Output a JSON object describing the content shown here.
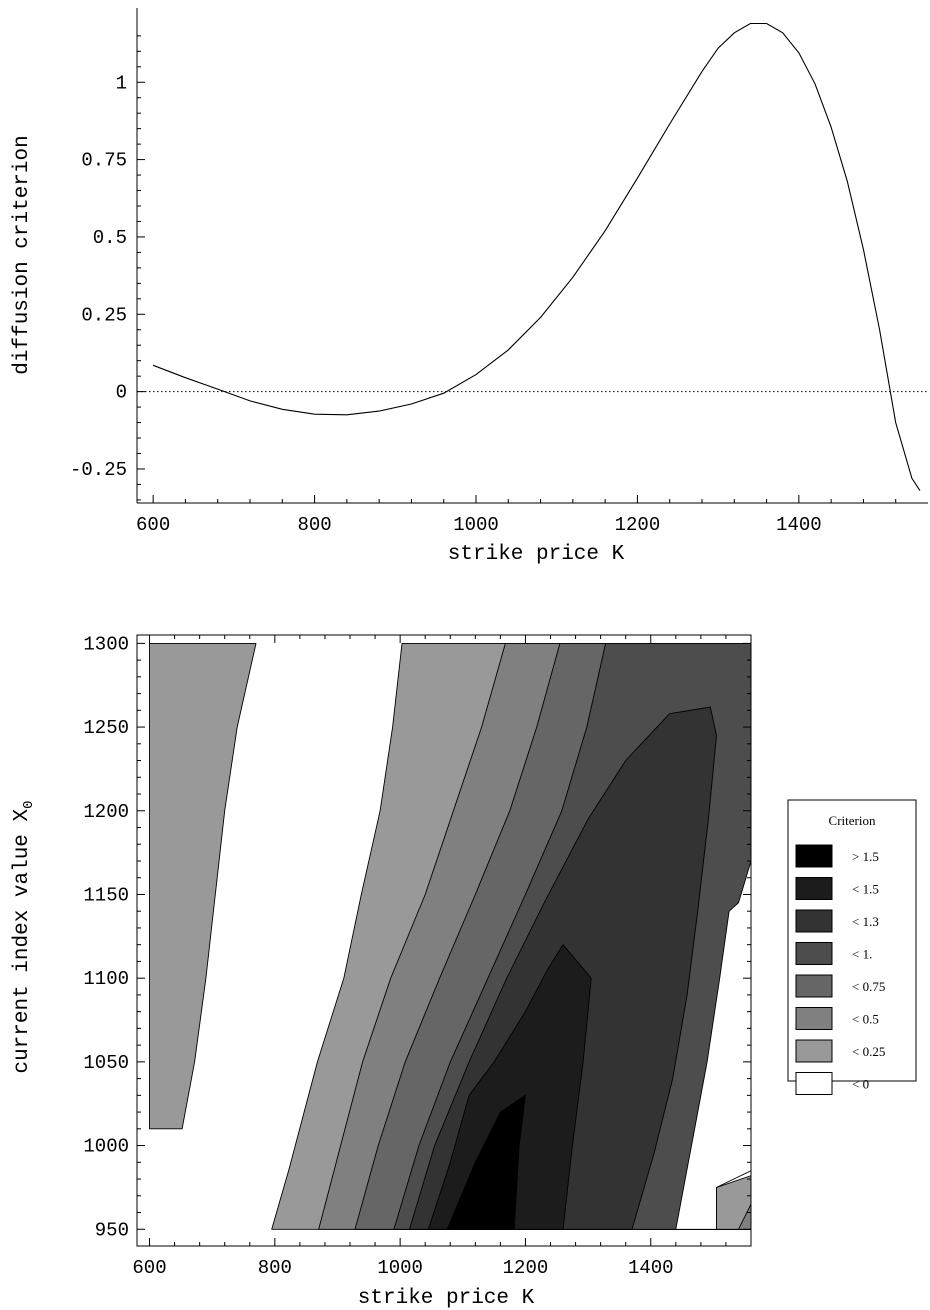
{
  "chart_data": [
    {
      "type": "line",
      "title": "",
      "xlabel": "strike price K",
      "ylabel": "diffusion criterion",
      "xlim": [
        580,
        1560
      ],
      "ylim": [
        -0.36,
        1.24
      ],
      "xticks": [
        "600",
        "800",
        "1000",
        "1200",
        "1400"
      ],
      "yticks": [
        "-0.25",
        "0",
        "0.25",
        "0.5",
        "0.75",
        "1"
      ],
      "reference_line": {
        "y": 0,
        "style": "dotted"
      },
      "grid": false,
      "series": [
        {
          "x": [
            600,
            640,
            680,
            720,
            760,
            800,
            840,
            880,
            920,
            960,
            1000,
            1040,
            1080,
            1120,
            1160,
            1200,
            1240,
            1280,
            1300,
            1320,
            1340,
            1360,
            1380,
            1400,
            1420,
            1440,
            1460,
            1480,
            1500,
            1520,
            1540,
            1550
          ],
          "y": [
            0.085,
            0.045,
            0.008,
            -0.03,
            -0.057,
            -0.073,
            -0.075,
            -0.063,
            -0.04,
            -0.005,
            0.055,
            0.135,
            0.24,
            0.37,
            0.52,
            0.69,
            0.865,
            1.035,
            1.11,
            1.16,
            1.19,
            1.19,
            1.16,
            1.095,
            0.995,
            0.855,
            0.68,
            0.46,
            0.2,
            -0.1,
            -0.28,
            -0.32
          ]
        }
      ]
    },
    {
      "type": "heatmap",
      "title": "",
      "xlabel": "strike price K",
      "ylabel_prefix": "current index value X",
      "ylabel_subscript": "0",
      "xlim": [
        580,
        1560
      ],
      "ylim": [
        940,
        1305
      ],
      "xticks": [
        "600",
        "800",
        "1000",
        "1200",
        "1400"
      ],
      "yticks": [
        "950",
        "1000",
        "1050",
        "1100",
        "1150",
        "1200",
        "1250",
        "1300"
      ],
      "grid": false,
      "legend": {
        "title": "Criterion",
        "position": "right",
        "entries": [
          {
            "label": "> 1.5",
            "color": "#000000"
          },
          {
            "label": "< 1.5",
            "color": "#1c1c1c"
          },
          {
            "label": "< 1.3",
            "color": "#333333"
          },
          {
            "label": "< 1.",
            "color": "#4d4d4d"
          },
          {
            "label": "< 0.75",
            "color": "#666666"
          },
          {
            "label": "< 0.5",
            "color": "#808080"
          },
          {
            "label": "< 0.25",
            "color": "#999999"
          },
          {
            "label": "< 0",
            "color": "#ffffff"
          }
        ]
      },
      "regions": [
        {
          "level": "< 0.25",
          "color": "#999999",
          "points": [
            [
              600,
              1300
            ],
            [
              770,
              1300
            ],
            [
              740,
              1250
            ],
            [
              720,
              1200
            ],
            [
              705,
              1150
            ],
            [
              690,
              1100
            ],
            [
              672,
              1050
            ],
            [
              652,
              1010
            ],
            [
              600,
              1010
            ]
          ]
        },
        {
          "level": "< 0.25",
          "color": "#999999",
          "points": [
            [
              1560,
              1300
            ],
            [
              1560,
              950
            ],
            [
              795,
              950
            ],
            [
              822,
              985
            ],
            [
              868,
              1050
            ],
            [
              910,
              1100
            ],
            [
              938,
              1150
            ],
            [
              968,
              1200
            ],
            [
              988,
              1250
            ],
            [
              1003,
              1300
            ]
          ]
        },
        {
          "level": "< 0.5",
          "color": "#808080",
          "points": [
            [
              1560,
              1300
            ],
            [
              1560,
              950
            ],
            [
              870,
              950
            ],
            [
              905,
              1000
            ],
            [
              940,
              1050
            ],
            [
              985,
              1100
            ],
            [
              1040,
              1150
            ],
            [
              1085,
              1200
            ],
            [
              1130,
              1250
            ],
            [
              1168,
              1300
            ]
          ]
        },
        {
          "level": "< 0.75",
          "color": "#666666",
          "points": [
            [
              1560,
              1300
            ],
            [
              1560,
              950
            ],
            [
              928,
              950
            ],
            [
              965,
              1000
            ],
            [
              1008,
              1050
            ],
            [
              1063,
              1100
            ],
            [
              1120,
              1150
            ],
            [
              1175,
              1200
            ],
            [
              1218,
              1250
            ],
            [
              1255,
              1300
            ]
          ]
        },
        {
          "level": "< 1.",
          "color": "#4d4d4d",
          "points": [
            [
              1560,
              1300
            ],
            [
              1560,
              950
            ],
            [
              990,
              950
            ],
            [
              1030,
              1000
            ],
            [
              1080,
              1050
            ],
            [
              1140,
              1100
            ],
            [
              1200,
              1150
            ],
            [
              1258,
              1200
            ],
            [
              1298,
              1250
            ],
            [
              1328,
              1300
            ]
          ]
        },
        {
          "level": "< 1.3",
          "color": "#333333",
          "points": [
            [
              1495,
              1262
            ],
            [
              1505,
              1245
            ],
            [
              1492,
              1195
            ],
            [
              1475,
              1140
            ],
            [
              1458,
              1090
            ],
            [
              1435,
              1040
            ],
            [
              1405,
              995
            ],
            [
              1370,
              950
            ],
            [
              1015,
              950
            ],
            [
              1055,
              1000
            ],
            [
              1110,
              1050
            ],
            [
              1170,
              1100
            ],
            [
              1230,
              1145
            ],
            [
              1300,
              1195
            ],
            [
              1360,
              1230
            ],
            [
              1430,
              1258
            ]
          ]
        },
        {
          "level": "< 1.5",
          "color": "#1c1c1c",
          "points": [
            [
              1260,
              1120
            ],
            [
              1305,
              1100
            ],
            [
              1292,
              1050
            ],
            [
              1275,
              1000
            ],
            [
              1260,
              950
            ],
            [
              1045,
              950
            ],
            [
              1080,
              990
            ],
            [
              1110,
              1030
            ],
            [
              1150,
              1050
            ],
            [
              1200,
              1080
            ],
            [
              1235,
              1105
            ]
          ]
        },
        {
          "level": "> 1.5",
          "color": "#000000",
          "points": [
            [
              1200,
              1030
            ],
            [
              1190,
              1000
            ],
            [
              1182,
              950
            ],
            [
              1075,
              950
            ],
            [
              1120,
              990
            ],
            [
              1160,
              1020
            ]
          ]
        },
        {
          "level": "< 0",
          "color": "#ffffff",
          "points": [
            [
              1560,
              950
            ],
            [
              1560,
              1170
            ],
            [
              1540,
              1145
            ],
            [
              1525,
              1140
            ],
            [
              1510,
              1100
            ],
            [
              1490,
              1050
            ],
            [
              1465,
              1000
            ],
            [
              1440,
              950
            ]
          ]
        }
      ]
    }
  ]
}
